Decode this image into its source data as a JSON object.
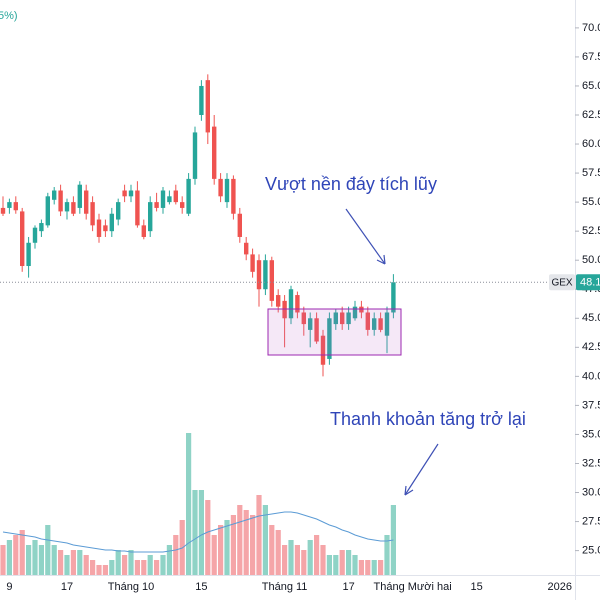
{
  "chart_data": {
    "type": "candlestick",
    "symbol": "GEX",
    "last_price": 48.1,
    "legend_fragment": "5%)",
    "annotations": [
      "Vượt nền đáy tích lũy",
      "Thanh khoản tăng trở lại"
    ],
    "up_color": "#26a69a",
    "down_color": "#ef5350",
    "volume_up_color": "#8fd3c6",
    "volume_down_color": "#f5a5a8",
    "ma_color": "#5b9bd5",
    "ylim": [
      22.9,
      72.4
    ],
    "yticks": [
      {
        "value": 25,
        "label": "25.0"
      },
      {
        "value": 27.5,
        "label": "27.5"
      },
      {
        "value": 30,
        "label": "30.0"
      },
      {
        "value": 32.5,
        "label": "32.5"
      },
      {
        "value": 35,
        "label": "35.0"
      },
      {
        "value": 37.5,
        "label": "37.5"
      },
      {
        "value": 40,
        "label": "40.0"
      },
      {
        "value": 42.5,
        "label": "42.5"
      },
      {
        "value": 45,
        "label": "45.0"
      },
      {
        "value": 47.5,
        "label": "47.5"
      },
      {
        "value": 50,
        "label": "50.0"
      },
      {
        "value": 52.5,
        "label": "52.5"
      },
      {
        "value": 55,
        "label": "55.0"
      },
      {
        "value": 57.5,
        "label": "57.5"
      },
      {
        "value": 60,
        "label": "60.0"
      },
      {
        "value": 62.5,
        "label": "62.5"
      },
      {
        "value": 65,
        "label": "65.0"
      },
      {
        "value": 67.5,
        "label": "67.5"
      },
      {
        "value": 70,
        "label": "70.0"
      }
    ],
    "volume_ylim": [
      0,
      57.5
    ],
    "categories": [
      null,
      "9",
      null,
      null,
      null,
      null,
      null,
      null,
      null,
      null,
      "17",
      null,
      null,
      null,
      null,
      null,
      null,
      null,
      null,
      null,
      "Tháng 10",
      null,
      null,
      null,
      null,
      null,
      null,
      null,
      null,
      null,
      null,
      "15",
      null,
      null,
      null,
      null,
      null,
      null,
      null,
      null,
      null,
      null,
      null,
      null,
      "Tháng 11",
      null,
      null,
      null,
      null,
      null,
      null,
      null,
      null,
      null,
      "17",
      null,
      null,
      null,
      null,
      null,
      null,
      null,
      null,
      null,
      "Tháng Mười hai",
      null,
      null,
      null,
      null,
      null,
      null,
      null,
      null,
      null,
      "15",
      null,
      null,
      null,
      null,
      null,
      null,
      null,
      null,
      null,
      null,
      null,
      null,
      "2026"
    ],
    "open": [
      54.5,
      54.5,
      55.0,
      54.2,
      49.5,
      51.5,
      52.5,
      53.0,
      55.2,
      56.0,
      54.2,
      55.0,
      54.5,
      56.0,
      55.0,
      53.5,
      53.0,
      52.5,
      53.5,
      56.0,
      55.5,
      56.0,
      53.0,
      52.5,
      55.0,
      54.5,
      55.0,
      56.0,
      55.0,
      54.0,
      57.0,
      62.5,
      65.5,
      61.5,
      57.0,
      55.0,
      57.0,
      54.0,
      51.5,
      50.5,
      50.0,
      47.5,
      50.0,
      47.0,
      46.5,
      45.0,
      47.0,
      45.5,
      44.0,
      45.0,
      43.5,
      41.5,
      44.5,
      45.5,
      44.5,
      45.0,
      46.0,
      45.5,
      44.0,
      45.0,
      43.5,
      45.5,
      null,
      null,
      null,
      null,
      null,
      null,
      null,
      null,
      null,
      null,
      null,
      null,
      null,
      null,
      null,
      null,
      null,
      null,
      null,
      null,
      null,
      null,
      null,
      null,
      null,
      null
    ],
    "high": [
      55.5,
      55.3,
      55.5,
      54.5,
      52.0,
      53.0,
      53.5,
      55.8,
      56.3,
      56.5,
      55.3,
      55.5,
      56.8,
      56.5,
      55.5,
      54.0,
      53.5,
      54.5,
      55.3,
      56.5,
      56.5,
      56.8,
      53.5,
      55.5,
      55.8,
      56.3,
      56.0,
      56.5,
      55.5,
      57.5,
      61.5,
      65.5,
      66.0,
      62.5,
      57.5,
      57.5,
      57.3,
      54.5,
      52.0,
      51.0,
      50.5,
      50.5,
      50.3,
      47.5,
      47.0,
      47.8,
      47.3,
      46.0,
      45.5,
      45.5,
      44.0,
      45.5,
      45.8,
      46.0,
      46.0,
      46.5,
      46.5,
      46.0,
      45.5,
      45.5,
      46.0,
      48.8,
      null,
      null,
      null,
      null,
      null,
      null,
      null,
      null,
      null,
      null,
      null,
      null,
      null,
      null,
      null,
      null,
      null,
      null,
      null,
      null,
      null,
      null,
      null,
      null,
      null,
      null
    ],
    "low": [
      53.8,
      54.0,
      54.0,
      49.0,
      48.5,
      51.0,
      52.0,
      52.8,
      54.8,
      53.8,
      53.5,
      53.8,
      54.0,
      53.5,
      52.5,
      51.5,
      52.0,
      52.0,
      53.0,
      55.0,
      55.0,
      52.8,
      51.8,
      52.0,
      54.2,
      54.0,
      54.8,
      54.8,
      54.0,
      53.8,
      56.5,
      62.0,
      60.0,
      56.5,
      55.0,
      54.5,
      53.5,
      51.5,
      50.0,
      48.5,
      46.0,
      47.0,
      46.0,
      45.5,
      42.5,
      44.5,
      45.0,
      43.5,
      42.5,
      42.8,
      40.0,
      41.0,
      44.0,
      44.0,
      44.0,
      44.8,
      45.0,
      43.5,
      43.5,
      43.8,
      42.0,
      45.0,
      null,
      null,
      null,
      null,
      null,
      null,
      null,
      null,
      null,
      null,
      null,
      null,
      null,
      null,
      null,
      null,
      null,
      null,
      null,
      null,
      null,
      null,
      null,
      null,
      null,
      null
    ],
    "close": [
      54.0,
      55.0,
      54.3,
      49.5,
      51.5,
      52.8,
      53.2,
      55.5,
      56.0,
      54.2,
      55.0,
      54.0,
      56.5,
      54.0,
      53.0,
      52.0,
      52.5,
      54.0,
      55.0,
      55.5,
      56.0,
      53.0,
      52.0,
      55.0,
      54.5,
      56.0,
      55.5,
      55.0,
      54.5,
      57.0,
      61.0,
      65.0,
      61.0,
      57.0,
      55.5,
      57.0,
      54.0,
      52.0,
      50.5,
      49.0,
      47.5,
      50.0,
      46.5,
      46.0,
      45.0,
      47.5,
      45.5,
      44.5,
      45.0,
      43.0,
      41.0,
      45.0,
      45.5,
      44.5,
      45.5,
      46.0,
      45.5,
      44.0,
      45.0,
      44.0,
      45.5,
      48.1,
      null,
      null,
      null,
      null,
      null,
      null,
      null,
      null,
      null,
      null,
      null,
      null,
      null,
      null,
      null,
      null,
      null,
      null,
      null,
      null,
      null,
      null,
      null,
      null,
      null,
      null
    ],
    "volume": [
      3,
      3.5,
      4,
      4.5,
      3,
      3.5,
      3,
      5,
      3,
      2.5,
      2,
      2.5,
      2.5,
      2,
      1.5,
      1,
      1,
      1.5,
      2.5,
      2,
      2.5,
      1.5,
      1.5,
      2,
      1.5,
      2,
      3,
      4,
      5.5,
      14.2,
      8.5,
      8.5,
      7.5,
      4,
      5,
      5.5,
      6,
      7,
      6.5,
      6,
      8,
      7,
      5,
      4.5,
      3,
      3.5,
      3,
      2.5,
      3.5,
      4,
      3,
      2,
      2,
      2.5,
      2.5,
      2,
      1.5,
      1.5,
      1.5,
      1.5,
      4,
      7,
      null,
      null,
      null,
      null,
      null,
      null,
      null,
      null,
      null,
      null,
      null,
      null,
      null,
      null,
      null,
      null,
      null,
      null,
      null,
      null,
      null,
      null,
      null,
      null,
      null,
      null
    ],
    "volume_ma": [
      4.3,
      4.2,
      4.1,
      4.0,
      3.9,
      3.8,
      3.6,
      3.5,
      3.4,
      3.3,
      3.2,
      3.0,
      2.9,
      2.8,
      2.7,
      2.6,
      2.5,
      2.5,
      2.4,
      2.4,
      2.3,
      2.3,
      2.3,
      2.3,
      2.3,
      2.3,
      2.4,
      2.5,
      2.7,
      3.2,
      3.6,
      4.0,
      4.3,
      4.5,
      4.7,
      4.9,
      5.1,
      5.3,
      5.5,
      5.7,
      5.9,
      6.0,
      6.1,
      6.2,
      6.3,
      6.3,
      6.2,
      6.0,
      5.8,
      5.6,
      5.3,
      5.0,
      4.8,
      4.5,
      4.3,
      4.0,
      3.8,
      3.6,
      3.5,
      3.4,
      3.4,
      3.5,
      null,
      null,
      null,
      null,
      null,
      null,
      null,
      null,
      null,
      null,
      null,
      null,
      null,
      null,
      null,
      null,
      null,
      null,
      null,
      null,
      null,
      null,
      null,
      null,
      null,
      null
    ]
  }
}
